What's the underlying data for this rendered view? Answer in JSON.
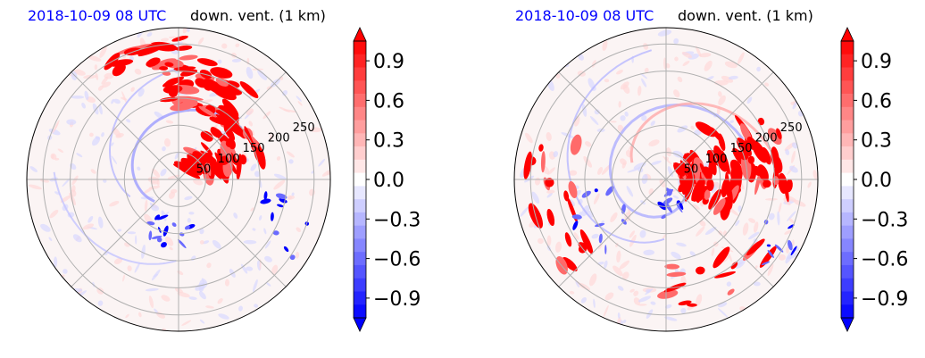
{
  "chart_data": [
    {
      "type": "heatmap",
      "projection": "polar",
      "title_left": "2018-10-09 08 UTC",
      "title_right": "down. vent. (1 km)",
      "radial_tick_labels": [
        "50",
        "100",
        "150",
        "200",
        "250"
      ],
      "radial_ticks": [
        50,
        100,
        150,
        200,
        250
      ],
      "r_max": 280,
      "angular_gridlines_deg": [
        0,
        45,
        90,
        135,
        180,
        225,
        270,
        315
      ],
      "grid": true,
      "colormap": "bwr",
      "colorbar": {
        "vmin": -1.05,
        "vmax": 1.05,
        "levels": 21,
        "extend": "both",
        "tick_values": [
          0.9,
          0.6,
          0.3,
          0.0,
          -0.3,
          -0.6,
          -0.9
        ],
        "tick_labels": [
          "0.9",
          "0.6",
          "0.3",
          "0.0",
          "−0.3",
          "−0.6",
          "−0.9"
        ]
      },
      "colors": {
        "title_left": "#0000ff",
        "positive": "#ff0000",
        "negative": "#0000ff"
      }
    },
    {
      "type": "heatmap",
      "projection": "polar",
      "title_left": "2018-10-09 08 UTC",
      "title_right": "down. vent. (1 km)",
      "radial_tick_labels": [
        "50",
        "100",
        "150",
        "200",
        "250"
      ],
      "radial_ticks": [
        50,
        100,
        150,
        200,
        250
      ],
      "r_max": 280,
      "angular_gridlines_deg": [
        0,
        45,
        90,
        135,
        180,
        225,
        270,
        315
      ],
      "grid": true,
      "colormap": "bwr",
      "colorbar": {
        "vmin": -1.05,
        "vmax": 1.05,
        "levels": 21,
        "extend": "both",
        "tick_values": [
          0.9,
          0.6,
          0.3,
          0.0,
          -0.3,
          -0.6,
          -0.9
        ],
        "tick_labels": [
          "0.9",
          "0.6",
          "0.3",
          "0.0",
          "−0.3",
          "−0.6",
          "−0.9"
        ]
      },
      "colors": {
        "title_left": "#0000ff",
        "positive": "#ff0000",
        "negative": "#0000ff"
      }
    }
  ]
}
